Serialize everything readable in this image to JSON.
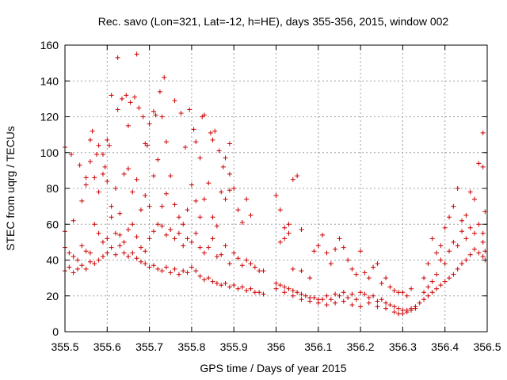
{
  "chart_data": {
    "type": "scatter",
    "title": "Rec. savo (Lon=321, Lat=-12, h=HE), days 355-356, 2015, window 002",
    "xlabel": "GPS time / Days of year 2015",
    "ylabel": "STEC from uqrg / TECUs",
    "xlim": [
      355.5,
      356.5
    ],
    "ylim": [
      0,
      160
    ],
    "x_ticks": [
      355.5,
      355.6,
      355.7,
      355.8,
      355.9,
      356,
      356.1,
      356.2,
      356.3,
      356.4,
      356.5
    ],
    "x_tick_labels": [
      "355.5",
      "355.6",
      "355.7",
      "355.8",
      "355.9",
      "356",
      "356.1",
      "356.2",
      "356.3",
      "356.4",
      "356.5"
    ],
    "y_ticks": [
      0,
      20,
      40,
      60,
      80,
      100,
      120,
      140,
      160
    ],
    "y_tick_labels": [
      "0",
      "20",
      "40",
      "60",
      "80",
      "100",
      "120",
      "140",
      "160"
    ],
    "grid": true,
    "marker": "plus",
    "color": "#cc0000",
    "points": [
      [
        355.5,
        103
      ],
      [
        355.515,
        99
      ],
      [
        355.535,
        93
      ],
      [
        355.55,
        86
      ],
      [
        355.56,
        107
      ],
      [
        355.565,
        112
      ],
      [
        355.575,
        99
      ],
      [
        355.58,
        104
      ],
      [
        355.59,
        99
      ],
      [
        355.595,
        92
      ],
      [
        355.6,
        107
      ],
      [
        355.605,
        104
      ],
      [
        355.61,
        132
      ],
      [
        355.625,
        153
      ],
      [
        355.625,
        124
      ],
      [
        355.635,
        130
      ],
      [
        355.645,
        132
      ],
      [
        355.65,
        115
      ],
      [
        355.655,
        128
      ],
      [
        355.665,
        131
      ],
      [
        355.67,
        155
      ],
      [
        355.675,
        125
      ],
      [
        355.685,
        120
      ],
      [
        355.69,
        105
      ],
      [
        355.695,
        104
      ],
      [
        355.7,
        116
      ],
      [
        355.71,
        123
      ],
      [
        355.715,
        121
      ],
      [
        355.725,
        134
      ],
      [
        355.73,
        120
      ],
      [
        355.735,
        142
      ],
      [
        355.74,
        106
      ],
      [
        355.76,
        129
      ],
      [
        355.775,
        122
      ],
      [
        355.785,
        103
      ],
      [
        355.795,
        124
      ],
      [
        355.805,
        113
      ],
      [
        355.81,
        106
      ],
      [
        355.82,
        97
      ],
      [
        355.825,
        120
      ],
      [
        355.83,
        121
      ],
      [
        355.845,
        111
      ],
      [
        355.85,
        107
      ],
      [
        355.855,
        112
      ],
      [
        355.865,
        101
      ],
      [
        355.875,
        92
      ],
      [
        355.88,
        97
      ],
      [
        355.89,
        105
      ],
      [
        355.89,
        88
      ],
      [
        355.5,
        56
      ],
      [
        355.52,
        62
      ],
      [
        355.54,
        73
      ],
      [
        355.55,
        82
      ],
      [
        355.56,
        95
      ],
      [
        355.57,
        86
      ],
      [
        355.58,
        78
      ],
      [
        355.59,
        88
      ],
      [
        355.6,
        84
      ],
      [
        355.61,
        70
      ],
      [
        355.62,
        80
      ],
      [
        355.63,
        66
      ],
      [
        355.64,
        88
      ],
      [
        355.65,
        91
      ],
      [
        355.66,
        78
      ],
      [
        355.67,
        85
      ],
      [
        355.68,
        68
      ],
      [
        355.69,
        76
      ],
      [
        355.7,
        70
      ],
      [
        355.71,
        87
      ],
      [
        355.72,
        96
      ],
      [
        355.73,
        70
      ],
      [
        355.74,
        77
      ],
      [
        355.75,
        87
      ],
      [
        355.76,
        71
      ],
      [
        355.77,
        64
      ],
      [
        355.78,
        60
      ],
      [
        355.79,
        68
      ],
      [
        355.8,
        82
      ],
      [
        355.81,
        73
      ],
      [
        355.82,
        64
      ],
      [
        355.83,
        74
      ],
      [
        355.84,
        83
      ],
      [
        355.85,
        64
      ],
      [
        355.86,
        59
      ],
      [
        355.87,
        78
      ],
      [
        355.88,
        74
      ],
      [
        355.89,
        79
      ],
      [
        355.9,
        80
      ],
      [
        355.91,
        68
      ],
      [
        355.92,
        61
      ],
      [
        355.93,
        74
      ],
      [
        355.94,
        65
      ],
      [
        355.5,
        47
      ],
      [
        355.51,
        44
      ],
      [
        355.52,
        42
      ],
      [
        355.53,
        40
      ],
      [
        355.54,
        48
      ],
      [
        355.55,
        45
      ],
      [
        355.56,
        44
      ],
      [
        355.57,
        60
      ],
      [
        355.58,
        55
      ],
      [
        355.59,
        50
      ],
      [
        355.6,
        52
      ],
      [
        355.61,
        64
      ],
      [
        355.62,
        55
      ],
      [
        355.63,
        54
      ],
      [
        355.64,
        50
      ],
      [
        355.65,
        57
      ],
      [
        355.66,
        60
      ],
      [
        355.67,
        53
      ],
      [
        355.68,
        47
      ],
      [
        355.69,
        45
      ],
      [
        355.7,
        52
      ],
      [
        355.71,
        56
      ],
      [
        355.72,
        60
      ],
      [
        355.73,
        59
      ],
      [
        355.74,
        54
      ],
      [
        355.75,
        57
      ],
      [
        355.76,
        52
      ],
      [
        355.77,
        55
      ],
      [
        355.78,
        48
      ],
      [
        355.79,
        52
      ],
      [
        355.8,
        50
      ],
      [
        355.81,
        55
      ],
      [
        355.82,
        47
      ],
      [
        355.83,
        44
      ],
      [
        355.84,
        47
      ],
      [
        355.85,
        52
      ],
      [
        355.86,
        42
      ],
      [
        355.87,
        43
      ],
      [
        355.88,
        48
      ],
      [
        355.89,
        38
      ],
      [
        355.9,
        44
      ],
      [
        355.91,
        41
      ],
      [
        355.92,
        37
      ],
      [
        355.93,
        40
      ],
      [
        355.94,
        38
      ],
      [
        355.95,
        36
      ],
      [
        355.96,
        34
      ],
      [
        355.97,
        34
      ],
      [
        355.5,
        34
      ],
      [
        355.51,
        36
      ],
      [
        355.52,
        33
      ],
      [
        355.53,
        35
      ],
      [
        355.54,
        37
      ],
      [
        355.55,
        35
      ],
      [
        355.56,
        39
      ],
      [
        355.57,
        38
      ],
      [
        355.58,
        40
      ],
      [
        355.59,
        42
      ],
      [
        355.6,
        44
      ],
      [
        355.61,
        47
      ],
      [
        355.62,
        43
      ],
      [
        355.63,
        48
      ],
      [
        355.64,
        44
      ],
      [
        355.65,
        42
      ],
      [
        355.66,
        44
      ],
      [
        355.67,
        41
      ],
      [
        355.68,
        39
      ],
      [
        355.69,
        38
      ],
      [
        355.7,
        36
      ],
      [
        355.71,
        37
      ],
      [
        355.72,
        35
      ],
      [
        355.73,
        34
      ],
      [
        355.74,
        36
      ],
      [
        355.75,
        33
      ],
      [
        355.76,
        35
      ],
      [
        355.77,
        32
      ],
      [
        355.78,
        34
      ],
      [
        355.79,
        33
      ],
      [
        355.8,
        36
      ],
      [
        355.81,
        34
      ],
      [
        355.82,
        31
      ],
      [
        355.83,
        29
      ],
      [
        355.84,
        30
      ],
      [
        355.85,
        28
      ],
      [
        355.86,
        27
      ],
      [
        355.87,
        26
      ],
      [
        355.88,
        27
      ],
      [
        355.89,
        25
      ],
      [
        355.9,
        26
      ],
      [
        355.91,
        24
      ],
      [
        355.92,
        25
      ],
      [
        355.93,
        23
      ],
      [
        355.94,
        24
      ],
      [
        355.95,
        22
      ],
      [
        355.96,
        22
      ],
      [
        355.97,
        21
      ],
      [
        356.0,
        76
      ],
      [
        356.01,
        68
      ],
      [
        356.02,
        58
      ],
      [
        356.03,
        60
      ],
      [
        356.04,
        85
      ],
      [
        356.05,
        87
      ],
      [
        356.06,
        57
      ],
      [
        356.02,
        52
      ],
      [
        356.01,
        50
      ],
      [
        356.03,
        55
      ],
      [
        356.04,
        35
      ],
      [
        356.06,
        34
      ],
      [
        356.08,
        30
      ],
      [
        356.09,
        45
      ],
      [
        356.1,
        48
      ],
      [
        356.11,
        54
      ],
      [
        356.12,
        44
      ],
      [
        356.13,
        38
      ],
      [
        356.14,
        46
      ],
      [
        356.15,
        52
      ],
      [
        356.16,
        47
      ],
      [
        356.17,
        40
      ],
      [
        356.18,
        35
      ],
      [
        356.19,
        32
      ],
      [
        356.2,
        45
      ],
      [
        356.21,
        33
      ],
      [
        356.22,
        30
      ],
      [
        356.23,
        36
      ],
      [
        356.24,
        38
      ],
      [
        356.25,
        27
      ],
      [
        356.26,
        30
      ],
      [
        356.27,
        25
      ],
      [
        356.28,
        23
      ],
      [
        356.29,
        22
      ],
      [
        356.3,
        22
      ],
      [
        356.31,
        20
      ],
      [
        356.32,
        24
      ],
      [
        356.0,
        27
      ],
      [
        356.01,
        26
      ],
      [
        356.02,
        25
      ],
      [
        356.03,
        24
      ],
      [
        356.04,
        23
      ],
      [
        356.05,
        22
      ],
      [
        356.06,
        21
      ],
      [
        356.07,
        20
      ],
      [
        356.08,
        19
      ],
      [
        356.09,
        19
      ],
      [
        356.1,
        18
      ],
      [
        356.11,
        18
      ],
      [
        356.12,
        20
      ],
      [
        356.13,
        18
      ],
      [
        356.14,
        21
      ],
      [
        356.15,
        20
      ],
      [
        356.16,
        22
      ],
      [
        356.17,
        19
      ],
      [
        356.18,
        21
      ],
      [
        356.19,
        18
      ],
      [
        356.2,
        22
      ],
      [
        356.21,
        21
      ],
      [
        356.22,
        19
      ],
      [
        356.23,
        20
      ],
      [
        356.24,
        17
      ],
      [
        356.25,
        18
      ],
      [
        356.26,
        16
      ],
      [
        356.27,
        15
      ],
      [
        356.28,
        14
      ],
      [
        356.29,
        13
      ],
      [
        356.3,
        12
      ],
      [
        356.31,
        12
      ],
      [
        356.32,
        13
      ],
      [
        356.33,
        14
      ],
      [
        356.34,
        16
      ],
      [
        356.0,
        24
      ],
      [
        356.02,
        22
      ],
      [
        356.04,
        20
      ],
      [
        356.06,
        18
      ],
      [
        356.08,
        17
      ],
      [
        356.1,
        16
      ],
      [
        356.12,
        15
      ],
      [
        356.14,
        16
      ],
      [
        356.16,
        17
      ],
      [
        356.18,
        15
      ],
      [
        356.2,
        14
      ],
      [
        356.22,
        16
      ],
      [
        356.24,
        14
      ],
      [
        356.26,
        13
      ],
      [
        356.28,
        11
      ],
      [
        356.29,
        10
      ],
      [
        356.3,
        10
      ],
      [
        356.31,
        11
      ],
      [
        356.32,
        12
      ],
      [
        356.33,
        13
      ],
      [
        356.35,
        30
      ],
      [
        356.36,
        38
      ],
      [
        356.37,
        52
      ],
      [
        356.38,
        44
      ],
      [
        356.39,
        48
      ],
      [
        356.4,
        58
      ],
      [
        356.41,
        64
      ],
      [
        356.42,
        70
      ],
      [
        356.43,
        80
      ],
      [
        356.44,
        62
      ],
      [
        356.45,
        65
      ],
      [
        356.46,
        78
      ],
      [
        356.47,
        74
      ],
      [
        356.48,
        94
      ],
      [
        356.49,
        92
      ],
      [
        356.49,
        111
      ],
      [
        356.495,
        67
      ],
      [
        356.49,
        55
      ],
      [
        356.35,
        22
      ],
      [
        356.36,
        25
      ],
      [
        356.37,
        28
      ],
      [
        356.38,
        32
      ],
      [
        356.39,
        40
      ],
      [
        356.4,
        38
      ],
      [
        356.41,
        45
      ],
      [
        356.42,
        50
      ],
      [
        356.43,
        48
      ],
      [
        356.44,
        56
      ],
      [
        356.45,
        52
      ],
      [
        356.46,
        58
      ],
      [
        356.47,
        55
      ],
      [
        356.48,
        60
      ],
      [
        356.49,
        50
      ],
      [
        356.495,
        45
      ],
      [
        356.35,
        18
      ],
      [
        356.36,
        20
      ],
      [
        356.37,
        22
      ],
      [
        356.38,
        24
      ],
      [
        356.39,
        26
      ],
      [
        356.4,
        28
      ],
      [
        356.41,
        30
      ],
      [
        356.42,
        32
      ],
      [
        356.43,
        35
      ],
      [
        356.44,
        38
      ],
      [
        356.45,
        40
      ],
      [
        356.46,
        43
      ],
      [
        356.47,
        46
      ],
      [
        356.48,
        44
      ],
      [
        356.49,
        42
      ],
      [
        356.495,
        40
      ]
    ]
  }
}
